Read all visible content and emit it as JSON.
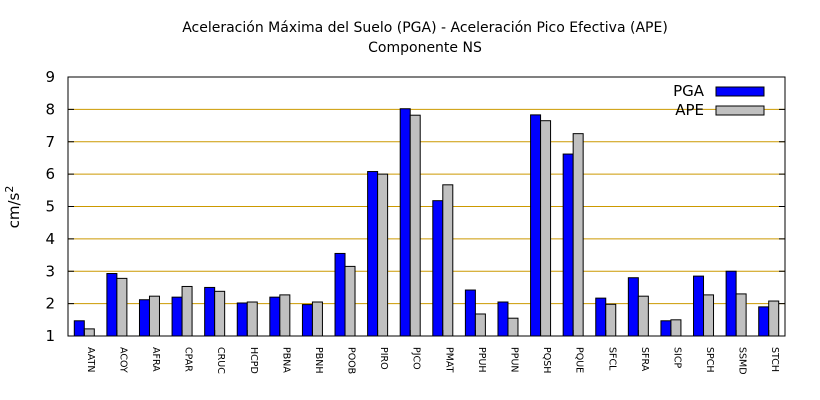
{
  "chart_data": {
    "type": "bar",
    "title": "Aceleración Máxima del Suelo (PGA) -  Aceleración Pico Efectiva (APE)",
    "subtitle": "Componente NS",
    "ylabel": "cm/s",
    "ylabel_superscript": "2",
    "xlabel": "",
    "ylim": [
      1,
      9
    ],
    "yticks": [
      "1",
      "2",
      "3",
      "4",
      "5",
      "6",
      "7",
      "8",
      "9"
    ],
    "grid": true,
    "legend_position": "top-right",
    "categories": [
      "AATN",
      "ACOY",
      "AFRA",
      "CPAR",
      "CRUC",
      "HCPD",
      "PBNA",
      "PBNH",
      "POOB",
      "PIRO",
      "PJCO",
      "PMAT",
      "PPUH",
      "PPUN",
      "PQSH",
      "PQUE",
      "SFCL",
      "SFRA",
      "SICP",
      "SPCH",
      "SSMD",
      "STCH"
    ],
    "series": [
      {
        "name": "PGA",
        "color": "#0000ff",
        "values": [
          1.47,
          2.93,
          2.12,
          2.2,
          2.5,
          2.02,
          2.2,
          1.97,
          3.55,
          6.08,
          8.02,
          5.18,
          2.42,
          2.05,
          7.83,
          6.62,
          2.17,
          2.8,
          1.47,
          2.85,
          3.0,
          1.9
        ]
      },
      {
        "name": "APE",
        "color": "#c0c0c0",
        "values": [
          1.22,
          2.78,
          2.23,
          2.53,
          2.38,
          2.05,
          2.27,
          2.05,
          3.15,
          6.0,
          7.82,
          5.67,
          1.68,
          1.55,
          7.65,
          7.25,
          1.98,
          2.23,
          1.5,
          2.27,
          2.3,
          2.08
        ]
      }
    ]
  }
}
